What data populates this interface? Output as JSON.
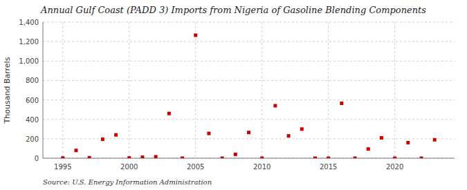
{
  "chart_data": {
    "type": "scatter",
    "title": "Annual Gulf Coast (PADD 3) Imports from Nigeria of Gasoline Blending Components",
    "y_label": "Thousand Barrels",
    "annotations": [
      "Source: U.S. Energy Information Administration"
    ],
    "x": [
      1995,
      1996,
      1997,
      1998,
      1999,
      2000,
      2001,
      2002,
      2003,
      2004,
      2005,
      2006,
      2007,
      2008,
      2009,
      2010,
      2011,
      2012,
      2013,
      2014,
      2015,
      2016,
      2017,
      2018,
      2019,
      2020,
      2021,
      2022,
      2023
    ],
    "values": [
      2,
      80,
      5,
      195,
      240,
      3,
      10,
      15,
      460,
      0,
      1265,
      255,
      0,
      40,
      265,
      0,
      540,
      230,
      300,
      0,
      0,
      565,
      0,
      95,
      210,
      0,
      160,
      0,
      190
    ],
    "color": "#cc0000",
    "marker": "square",
    "xlim": [
      1993.5,
      2024.5
    ],
    "xticks": [
      1995,
      2000,
      2005,
      2010,
      2015,
      2020
    ],
    "ylim": [
      0,
      1400
    ],
    "yticks": [
      0,
      200,
      400,
      600,
      800,
      {
        "value": 1000,
        "label": "1,000"
      },
      {
        "value": 1200,
        "label": "1,200"
      },
      {
        "value": 1400,
        "label": "1,400"
      }
    ],
    "grid": true
  }
}
